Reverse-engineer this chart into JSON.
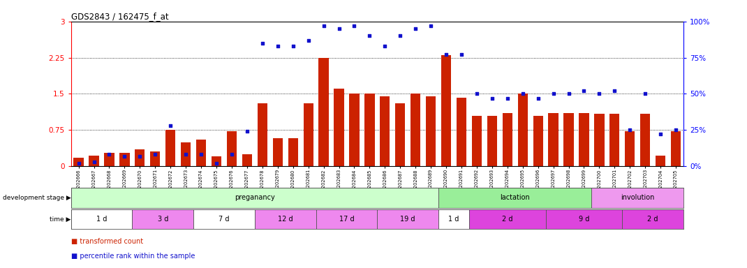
{
  "title": "GDS2843 / 162475_f_at",
  "samples": [
    "GSM202666",
    "GSM202667",
    "GSM202668",
    "GSM202669",
    "GSM202670",
    "GSM202671",
    "GSM202672",
    "GSM202673",
    "GSM202674",
    "GSM202675",
    "GSM202676",
    "GSM202677",
    "GSM202678",
    "GSM202679",
    "GSM202680",
    "GSM202681",
    "GSM202682",
    "GSM202683",
    "GSM202684",
    "GSM202685",
    "GSM202686",
    "GSM202687",
    "GSM202688",
    "GSM202689",
    "GSM202690",
    "GSM202691",
    "GSM202692",
    "GSM202693",
    "GSM202694",
    "GSM202695",
    "GSM202696",
    "GSM202697",
    "GSM202698",
    "GSM202699",
    "GSM202700",
    "GSM202701",
    "GSM202702",
    "GSM202703",
    "GSM202704",
    "GSM202705"
  ],
  "bar_values": [
    0.18,
    0.22,
    0.28,
    0.28,
    0.35,
    0.3,
    0.75,
    0.5,
    0.55,
    0.2,
    0.72,
    0.25,
    1.3,
    0.58,
    0.58,
    1.3,
    2.25,
    1.6,
    1.5,
    1.5,
    1.45,
    1.3,
    1.5,
    1.45,
    2.3,
    1.42,
    1.05,
    1.05,
    1.1,
    1.5,
    1.05,
    1.1,
    1.1,
    1.1,
    1.08,
    1.08,
    0.72,
    1.08,
    0.22,
    0.72
  ],
  "dot_values_pct": [
    2,
    3,
    8,
    7,
    7,
    8,
    28,
    8,
    8,
    2,
    8,
    24,
    85,
    83,
    83,
    87,
    97,
    95,
    97,
    90,
    83,
    90,
    95,
    97,
    77,
    77,
    50,
    47,
    47,
    50,
    47,
    50,
    50,
    52,
    50,
    52,
    25,
    50,
    22,
    25
  ],
  "bar_color": "#cc2200",
  "dot_color": "#1111cc",
  "bg_color": "#ffffff",
  "grid_color": "#000000",
  "ylim_left": [
    0,
    3.0
  ],
  "ylim_right": [
    0,
    100
  ],
  "yticks_left": [
    0,
    0.75,
    1.5,
    2.25,
    3.0
  ],
  "yticks_right": [
    0,
    25,
    50,
    75,
    100
  ],
  "ytick_labels_left": [
    "0",
    "0.75",
    "1.5",
    "2.25",
    "3"
  ],
  "ytick_labels_right": [
    "0%",
    "25%",
    "50%",
    "75%",
    "100%"
  ],
  "dev_stages": [
    {
      "label": "preganancy",
      "start": 0,
      "end": 24,
      "color": "#ccffcc"
    },
    {
      "label": "lactation",
      "start": 24,
      "end": 34,
      "color": "#99ee99"
    },
    {
      "label": "involution",
      "start": 34,
      "end": 40,
      "color": "#ee99ee"
    }
  ],
  "time_groups": [
    {
      "label": "1 d",
      "start": 0,
      "end": 4,
      "color": "#ffffff"
    },
    {
      "label": "3 d",
      "start": 4,
      "end": 8,
      "color": "#ee88ee"
    },
    {
      "label": "7 d",
      "start": 8,
      "end": 12,
      "color": "#ffffff"
    },
    {
      "label": "12 d",
      "start": 12,
      "end": 16,
      "color": "#ee88ee"
    },
    {
      "label": "17 d",
      "start": 16,
      "end": 20,
      "color": "#ee88ee"
    },
    {
      "label": "19 d",
      "start": 20,
      "end": 24,
      "color": "#ee88ee"
    },
    {
      "label": "1 d",
      "start": 24,
      "end": 26,
      "color": "#ffffff"
    },
    {
      "label": "2 d",
      "start": 26,
      "end": 31,
      "color": "#dd44dd"
    },
    {
      "label": "9 d",
      "start": 31,
      "end": 36,
      "color": "#dd44dd"
    },
    {
      "label": "2 d",
      "start": 36,
      "end": 40,
      "color": "#dd44dd"
    }
  ],
  "legend_items": [
    {
      "label": "transformed count",
      "color": "#cc2200",
      "marker": "s"
    },
    {
      "label": "percentile rank within the sample",
      "color": "#1111cc",
      "marker": "s"
    }
  ]
}
